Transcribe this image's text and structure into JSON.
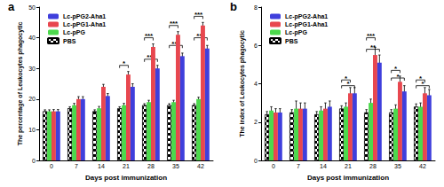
{
  "chart_data": [
    {
      "type": "bar",
      "title": "a",
      "x_label": "Days post immunization",
      "y_label": "The percentage of Leukocytes phagocytic",
      "categories": [
        "0",
        "7",
        "14",
        "21",
        "28",
        "35",
        "42"
      ],
      "ylim": [
        0,
        50
      ],
      "yticks": [
        0,
        10,
        20,
        30,
        40,
        50
      ],
      "legend": "upper left",
      "series": [
        {
          "name": "PBS",
          "color": "#000000",
          "marker": "checkered",
          "values": [
            16,
            17,
            16,
            17,
            18,
            18,
            18
          ],
          "errors": [
            0.5,
            0.5,
            0.5,
            0.5,
            0.5,
            0.5,
            0.5
          ]
        },
        {
          "name": "Lc-pPG",
          "color": "#4cd94c",
          "values": [
            16,
            18,
            17,
            18,
            19,
            19,
            20
          ],
          "errors": [
            0.5,
            0.6,
            0.6,
            0.6,
            0.6,
            0.6,
            0.6
          ]
        },
        {
          "name": "Lc-pPG1-Aha1",
          "color": "#e8474f",
          "values": [
            16,
            20,
            24,
            28,
            37,
            41,
            44
          ],
          "errors": [
            0.6,
            0.8,
            0.8,
            1,
            1,
            1,
            1
          ]
        },
        {
          "name": "Lc-pPG2-Aha1",
          "color": "#3f3fdc",
          "values": [
            16,
            20,
            21,
            24,
            30,
            34,
            36.5
          ],
          "errors": [
            0.6,
            0.8,
            0.8,
            1,
            1,
            1,
            1
          ]
        }
      ],
      "annotations": [
        {
          "x": "21",
          "text": "*",
          "y": 31,
          "series": [
            "PBS",
            "Lc-pPG1-Aha1"
          ]
        },
        {
          "x": "28",
          "text": "***",
          "y": 40,
          "series": [
            "PBS",
            "Lc-pPG1-Aha1"
          ]
        },
        {
          "x": "28",
          "text": "***",
          "y": 33,
          "series": [
            "PBS",
            "Lc-pPG2-Aha1"
          ]
        },
        {
          "x": "35",
          "text": "***",
          "y": 44,
          "series": [
            "PBS",
            "Lc-pPG1-Aha1"
          ]
        },
        {
          "x": "35",
          "text": "***",
          "y": 37.5,
          "series": [
            "PBS",
            "Lc-pPG2-Aha1"
          ]
        },
        {
          "x": "42",
          "text": "***",
          "y": 47,
          "series": [
            "PBS",
            "Lc-pPG1-Aha1"
          ]
        },
        {
          "x": "42",
          "text": "***",
          "y": 40,
          "series": [
            "PBS",
            "Lc-pPG2-Aha1"
          ]
        }
      ]
    },
    {
      "type": "bar",
      "title": "b",
      "x_label": "Days post immunization",
      "y_label": "The index of Leukocytes phagocytic",
      "categories": [
        "0",
        "7",
        "14",
        "21",
        "28",
        "35",
        "42"
      ],
      "ylim": [
        0,
        8
      ],
      "yticks": [
        0,
        2,
        4,
        6,
        8
      ],
      "legend": "upper left",
      "series": [
        {
          "name": "PBS",
          "color": "#000000",
          "marker": "checkered",
          "values": [
            2.4,
            2.5,
            2.4,
            2.7,
            2.5,
            2.5,
            2.8
          ],
          "errors": [
            0.15,
            0.15,
            0.15,
            0.15,
            0.15,
            0.15,
            0.15
          ]
        },
        {
          "name": "Lc-pPG",
          "color": "#4cd94c",
          "values": [
            2.6,
            2.7,
            2.6,
            2.8,
            3.0,
            2.7,
            2.8
          ],
          "errors": [
            0.2,
            0.4,
            0.2,
            0.2,
            0.2,
            0.2,
            0.2
          ]
        },
        {
          "name": "Lc-pPG1-Aha1",
          "color": "#e8474f",
          "values": [
            2.5,
            2.7,
            2.7,
            3.5,
            5.5,
            4.1,
            3.5
          ],
          "errors": [
            0.2,
            0.3,
            0.3,
            0.3,
            0.4,
            0.3,
            0.3
          ]
        },
        {
          "name": "Lc-pPG2-Aha1",
          "color": "#3f3fdc",
          "values": [
            2.5,
            2.7,
            2.8,
            3.5,
            5.1,
            3.6,
            3.4
          ],
          "errors": [
            0.2,
            0.3,
            0.3,
            0.3,
            0.4,
            0.3,
            0.3
          ]
        }
      ],
      "annotations": [
        {
          "x": "21",
          "text": "*",
          "y": 4.2,
          "series": [
            "PBS",
            "Lc-pPG1-Aha1"
          ]
        },
        {
          "x": "21",
          "text": "*",
          "y": 3.9,
          "series": [
            "PBS",
            "Lc-pPG2-Aha1"
          ]
        },
        {
          "x": "28",
          "text": "***",
          "y": 6.4,
          "series": [
            "PBS",
            "Lc-pPG1-Aha1"
          ]
        },
        {
          "x": "28",
          "text": "**",
          "y": 5.8,
          "series": [
            "PBS",
            "Lc-pPG2-Aha1"
          ]
        },
        {
          "x": "35",
          "text": "*",
          "y": 4.7,
          "series": [
            "PBS",
            "Lc-pPG1-Aha1"
          ]
        },
        {
          "x": "35",
          "text": "*",
          "y": 4.3,
          "series": [
            "PBS",
            "Lc-pPG2-Aha1"
          ]
        },
        {
          "x": "42",
          "text": "*",
          "y": 4.2,
          "series": [
            "PBS",
            "Lc-pPG1-Aha1"
          ]
        },
        {
          "x": "42",
          "text": "*",
          "y": 3.9,
          "series": [
            "PBS",
            "Lc-pPG2-Aha1"
          ]
        }
      ]
    }
  ]
}
